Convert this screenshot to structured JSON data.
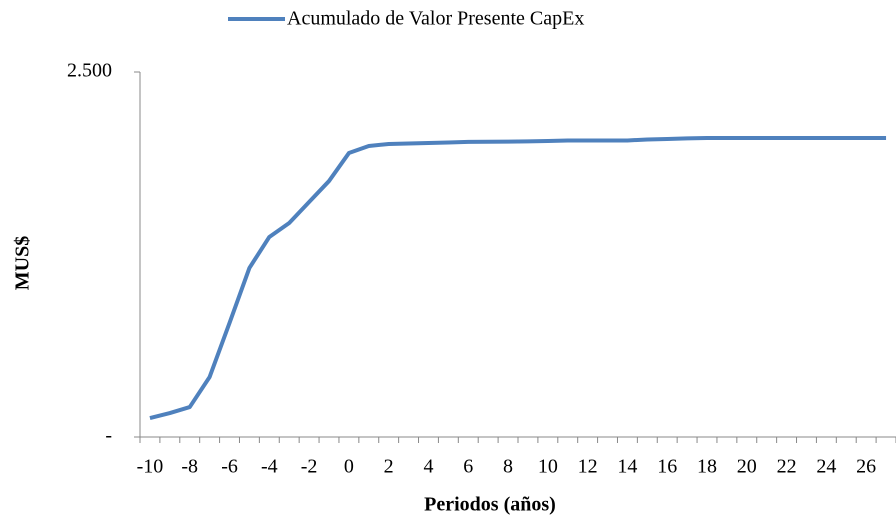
{
  "chart_data": {
    "type": "line",
    "legend": "top",
    "x_label": "Periodos (años)",
    "y_label": "MUS$",
    "categories": [
      "-10",
      null,
      "-8",
      null,
      "-6",
      null,
      "-4",
      null,
      "-2",
      null,
      "0",
      null,
      "2",
      null,
      "4",
      null,
      "6",
      null,
      "8",
      null,
      "10",
      null,
      "12",
      null,
      "14",
      null,
      "16",
      null,
      "18",
      null,
      "20",
      null,
      "22",
      null,
      "24",
      null,
      "26",
      null
    ],
    "series": [
      {
        "name": "Acumulado de Valor Presente CapEx",
        "color": "#4f81bd",
        "values": [
          130,
          164,
          205,
          411,
          781,
          1158,
          1370,
          1466,
          1610,
          1753,
          1945,
          1993,
          2007,
          2010,
          2014,
          2017,
          2021,
          2022,
          2023,
          2025,
          2027,
          2031,
          2031,
          2031,
          2031,
          2038,
          2041,
          2045,
          2048,
          2048,
          2048,
          2048,
          2048,
          2048,
          2048,
          2048,
          2048,
          2048
        ]
      }
    ],
    "ylim": [
      0,
      2500
    ],
    "yticks": [
      {
        "value": 0,
        "label": "-"
      },
      {
        "value": 2500,
        "label": "2.500"
      }
    ],
    "grid": false
  }
}
